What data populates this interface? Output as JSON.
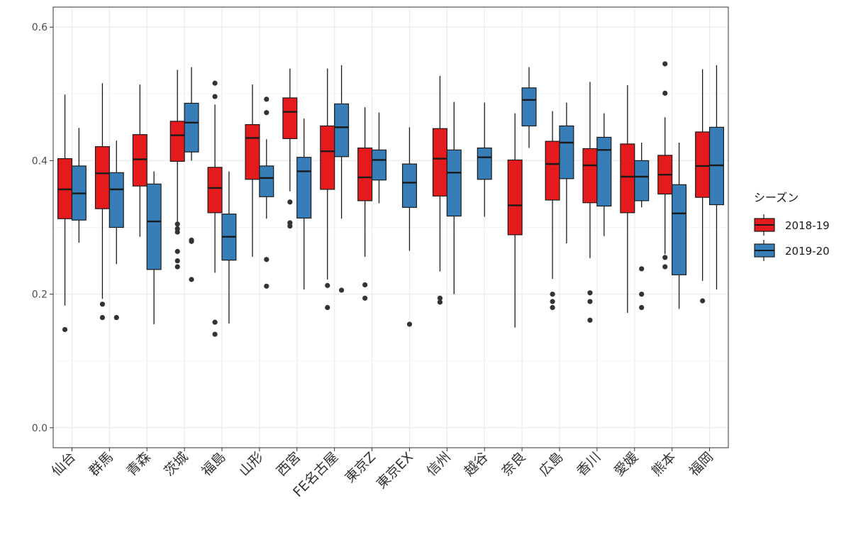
{
  "chart_data": {
    "type": "box",
    "ylim": [
      -0.03,
      0.63
    ],
    "yticks": [
      0.0,
      0.2,
      0.4,
      0.6
    ],
    "ytick_labels": [
      "0.0",
      "0.2",
      "0.4",
      "0.6"
    ],
    "grid": true,
    "legend": {
      "title": "シーズン",
      "placement": "right",
      "entries": [
        {
          "label": "2018-19",
          "color": "#E41A1C"
        },
        {
          "label": "2019-20",
          "color": "#377EB8"
        }
      ]
    },
    "categories": [
      {
        "label": "仙台",
        "boxes": [
          {
            "series": "2018-19",
            "lo": 0.183,
            "q1": 0.313,
            "med": 0.357,
            "q3": 0.403,
            "hi": 0.499,
            "outliers": [
              0.147
            ]
          },
          {
            "series": "2019-20",
            "lo": 0.277,
            "q1": 0.311,
            "med": 0.351,
            "q3": 0.392,
            "hi": 0.449,
            "outliers": []
          }
        ]
      },
      {
        "label": "群馬",
        "boxes": [
          {
            "series": "2018-19",
            "lo": 0.193,
            "q1": 0.328,
            "med": 0.381,
            "q3": 0.421,
            "hi": 0.516,
            "outliers": [
              0.185,
              0.165
            ]
          },
          {
            "series": "2019-20",
            "lo": 0.245,
            "q1": 0.3,
            "med": 0.357,
            "q3": 0.382,
            "hi": 0.43,
            "outliers": [
              0.165
            ]
          }
        ]
      },
      {
        "label": "青森",
        "boxes": [
          {
            "series": "2018-19",
            "lo": 0.286,
            "q1": 0.362,
            "med": 0.402,
            "q3": 0.439,
            "hi": 0.514,
            "outliers": []
          },
          {
            "series": "2019-20",
            "lo": 0.155,
            "q1": 0.237,
            "med": 0.309,
            "q3": 0.365,
            "hi": 0.384,
            "outliers": []
          }
        ]
      },
      {
        "label": "茨城",
        "boxes": [
          {
            "series": "2018-19",
            "lo": 0.308,
            "q1": 0.399,
            "med": 0.438,
            "q3": 0.459,
            "hi": 0.536,
            "outliers": [
              0.305,
              0.298,
              0.293,
              0.264,
              0.25,
              0.241
            ]
          },
          {
            "series": "2019-20",
            "lo": 0.4,
            "q1": 0.413,
            "med": 0.457,
            "q3": 0.486,
            "hi": 0.54,
            "outliers": [
              0.281,
              0.279,
              0.222
            ]
          }
        ]
      },
      {
        "label": "福島",
        "boxes": [
          {
            "series": "2018-19",
            "lo": 0.232,
            "q1": 0.322,
            "med": 0.359,
            "q3": 0.39,
            "hi": 0.484,
            "outliers": [
              0.516,
              0.496,
              0.158,
              0.14
            ]
          },
          {
            "series": "2019-20",
            "lo": 0.156,
            "q1": 0.251,
            "med": 0.286,
            "q3": 0.32,
            "hi": 0.384,
            "outliers": []
          }
        ]
      },
      {
        "label": "山形",
        "boxes": [
          {
            "series": "2018-19",
            "lo": 0.256,
            "q1": 0.372,
            "med": 0.434,
            "q3": 0.454,
            "hi": 0.514,
            "outliers": []
          },
          {
            "series": "2019-20",
            "lo": 0.313,
            "q1": 0.346,
            "med": 0.374,
            "q3": 0.392,
            "hi": 0.432,
            "outliers": [
              0.492,
              0.472,
              0.252,
              0.212
            ]
          }
        ]
      },
      {
        "label": "西宮",
        "boxes": [
          {
            "series": "2018-19",
            "lo": 0.354,
            "q1": 0.433,
            "med": 0.473,
            "q3": 0.494,
            "hi": 0.538,
            "outliers": [
              0.338,
              0.307,
              0.302
            ]
          },
          {
            "series": "2019-20",
            "lo": 0.207,
            "q1": 0.314,
            "med": 0.384,
            "q3": 0.405,
            "hi": 0.463,
            "outliers": []
          }
        ]
      },
      {
        "label": "FE名古屋",
        "boxes": [
          {
            "series": "2018-19",
            "lo": 0.222,
            "q1": 0.357,
            "med": 0.414,
            "q3": 0.452,
            "hi": 0.538,
            "outliers": [
              0.213,
              0.18
            ]
          },
          {
            "series": "2019-20",
            "lo": 0.313,
            "q1": 0.406,
            "med": 0.45,
            "q3": 0.485,
            "hi": 0.543,
            "outliers": [
              0.206
            ]
          }
        ]
      },
      {
        "label": "東京Z",
        "boxes": [
          {
            "series": "2018-19",
            "lo": 0.256,
            "q1": 0.34,
            "med": 0.375,
            "q3": 0.419,
            "hi": 0.48,
            "outliers": [
              0.214,
              0.194
            ]
          },
          {
            "series": "2019-20",
            "lo": 0.336,
            "q1": 0.371,
            "med": 0.401,
            "q3": 0.416,
            "hi": 0.472,
            "outliers": []
          }
        ]
      },
      {
        "label": "東京EX",
        "boxes": [
          {
            "series": "2019-20",
            "lo": 0.265,
            "q1": 0.33,
            "med": 0.367,
            "q3": 0.395,
            "hi": 0.45,
            "outliers": [
              0.155
            ]
          }
        ]
      },
      {
        "label": "信州",
        "boxes": [
          {
            "series": "2018-19",
            "lo": 0.234,
            "q1": 0.347,
            "med": 0.403,
            "q3": 0.448,
            "hi": 0.527,
            "outliers": [
              0.194,
              0.188
            ]
          },
          {
            "series": "2019-20",
            "lo": 0.2,
            "q1": 0.317,
            "med": 0.382,
            "q3": 0.416,
            "hi": 0.488,
            "outliers": []
          }
        ]
      },
      {
        "label": "越谷",
        "boxes": [
          {
            "series": "2019-20",
            "lo": 0.316,
            "q1": 0.372,
            "med": 0.405,
            "q3": 0.419,
            "hi": 0.487,
            "outliers": []
          }
        ]
      },
      {
        "label": "奈良",
        "boxes": [
          {
            "series": "2018-19",
            "lo": 0.15,
            "q1": 0.289,
            "med": 0.333,
            "q3": 0.401,
            "hi": 0.471,
            "outliers": []
          },
          {
            "series": "2019-20",
            "lo": 0.419,
            "q1": 0.452,
            "med": 0.491,
            "q3": 0.509,
            "hi": 0.54,
            "outliers": []
          }
        ]
      },
      {
        "label": "広島",
        "boxes": [
          {
            "series": "2018-19",
            "lo": 0.223,
            "q1": 0.341,
            "med": 0.395,
            "q3": 0.429,
            "hi": 0.474,
            "outliers": [
              0.2,
              0.189,
              0.18
            ]
          },
          {
            "series": "2019-20",
            "lo": 0.276,
            "q1": 0.373,
            "med": 0.427,
            "q3": 0.452,
            "hi": 0.487,
            "outliers": []
          }
        ]
      },
      {
        "label": "香川",
        "boxes": [
          {
            "series": "2018-19",
            "lo": 0.254,
            "q1": 0.337,
            "med": 0.393,
            "q3": 0.418,
            "hi": 0.518,
            "outliers": [
              0.202,
              0.189,
              0.161
            ]
          },
          {
            "series": "2019-20",
            "lo": 0.287,
            "q1": 0.332,
            "med": 0.416,
            "q3": 0.435,
            "hi": 0.471,
            "outliers": []
          }
        ]
      },
      {
        "label": "愛媛",
        "boxes": [
          {
            "series": "2018-19",
            "lo": 0.172,
            "q1": 0.322,
            "med": 0.376,
            "q3": 0.425,
            "hi": 0.513,
            "outliers": []
          },
          {
            "series": "2019-20",
            "lo": 0.33,
            "q1": 0.34,
            "med": 0.376,
            "q3": 0.4,
            "hi": 0.427,
            "outliers": [
              0.238,
              0.2,
              0.18
            ]
          }
        ]
      },
      {
        "label": "熊本",
        "boxes": [
          {
            "series": "2018-19",
            "lo": 0.26,
            "q1": 0.35,
            "med": 0.379,
            "q3": 0.408,
            "hi": 0.465,
            "outliers": [
              0.545,
              0.501,
              0.255,
              0.241
            ]
          },
          {
            "series": "2019-20",
            "lo": 0.178,
            "q1": 0.229,
            "med": 0.321,
            "q3": 0.364,
            "hi": 0.427,
            "outliers": []
          }
        ]
      },
      {
        "label": "福岡",
        "boxes": [
          {
            "series": "2018-19",
            "lo": 0.22,
            "q1": 0.345,
            "med": 0.392,
            "q3": 0.443,
            "hi": 0.537,
            "outliers": [
              0.19
            ]
          },
          {
            "series": "2019-20",
            "lo": 0.207,
            "q1": 0.334,
            "med": 0.393,
            "q3": 0.45,
            "hi": 0.543,
            "outliers": []
          }
        ]
      }
    ]
  }
}
